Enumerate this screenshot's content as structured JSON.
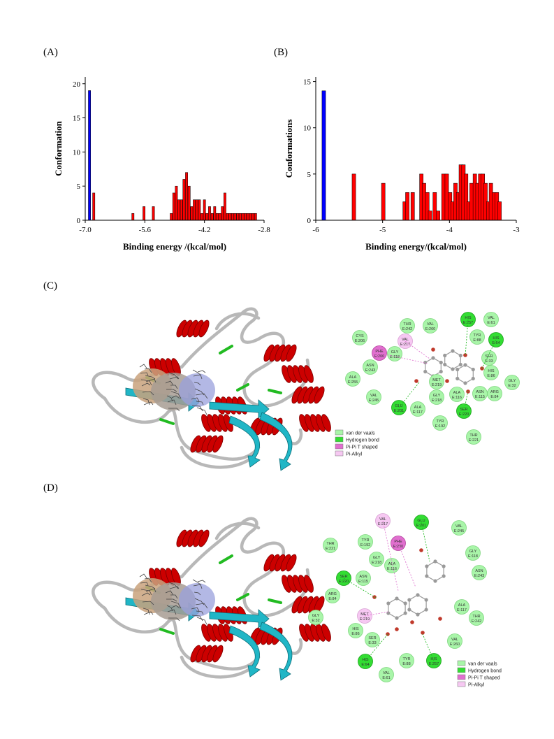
{
  "panels": {
    "a": "(A)",
    "b": "(B)",
    "c": "(C)",
    "d": "(D)"
  },
  "chart_data": [
    {
      "type": "bar",
      "panel": "(A)",
      "xlabel": "Binding energy /(kcal/mol)",
      "ylabel": "Conformation",
      "xlim": [
        -7.0,
        -2.8
      ],
      "ylim": [
        0,
        21
      ],
      "xticks": [
        -7.0,
        -5.6,
        -4.2,
        -2.8
      ],
      "yticks": [
        0,
        5,
        10,
        15,
        20
      ],
      "series": [
        {
          "color": "#0000ff",
          "x": [
            -6.9
          ],
          "values": [
            19
          ]
        },
        {
          "color": "#ff0000",
          "x": [
            -6.8,
            -5.88,
            -5.62,
            -5.4,
            -4.98,
            -4.92,
            -4.86,
            -4.8,
            -4.74,
            -4.68,
            -4.62,
            -4.56,
            -4.5,
            -4.44,
            -4.38,
            -4.32,
            -4.26,
            -4.2,
            -4.14,
            -4.08,
            -4.02,
            -3.96,
            -3.9,
            -3.84,
            -3.78,
            -3.72,
            -3.66,
            -3.6,
            -3.54,
            -3.48,
            -3.42,
            -3.36,
            -3.3,
            -3.24,
            -3.18,
            -3.12,
            -3.06,
            -3.0
          ],
          "values": [
            4,
            1,
            2,
            2,
            1,
            4,
            5,
            3,
            3,
            6,
            7,
            5,
            2,
            3,
            3,
            3,
            1,
            3,
            1,
            2,
            1,
            2,
            1,
            1,
            2,
            4,
            1,
            1,
            1,
            1,
            1,
            1,
            1,
            1,
            1,
            1,
            1,
            1
          ]
        }
      ]
    },
    {
      "type": "bar",
      "panel": "(B)",
      "xlabel": "Binding energy/(kcal/mol)",
      "ylabel": "Conformations",
      "xlim": [
        -6.0,
        -3.0
      ],
      "ylim": [
        0,
        15.5
      ],
      "xticks": [
        -6,
        -5,
        -4,
        -3
      ],
      "yticks": [
        0,
        5,
        10,
        15
      ],
      "series": [
        {
          "color": "#0000ff",
          "x": [
            -5.88
          ],
          "values": [
            14
          ]
        },
        {
          "color": "#ff0000",
          "x": [
            -5.43,
            -4.99,
            -4.67,
            -4.63,
            -4.55,
            -4.42,
            -4.38,
            -4.33,
            -4.29,
            -4.22,
            -4.17,
            -4.09,
            -4.04,
            -3.99,
            -3.95,
            -3.91,
            -3.87,
            -3.83,
            -3.79,
            -3.75,
            -3.71,
            -3.67,
            -3.62,
            -3.58,
            -3.54,
            -3.5,
            -3.46,
            -3.42,
            -3.38,
            -3.33,
            -3.29,
            -3.25
          ],
          "values": [
            5,
            4,
            2,
            3,
            3,
            5,
            4,
            3,
            1,
            3,
            1,
            5,
            5,
            3,
            2,
            4,
            3,
            6,
            6,
            5,
            2,
            4,
            5,
            4,
            5,
            5,
            4,
            2,
            4,
            3,
            3,
            2
          ]
        }
      ]
    }
  ],
  "interaction_c": {
    "residues": [
      {
        "l1": "CYS",
        "l2": "E:206",
        "kind": "vdw"
      },
      {
        "l1": "THR",
        "l2": "E:242",
        "kind": "vdw"
      },
      {
        "l1": "VAL",
        "l2": "E:260",
        "kind": "vdw"
      },
      {
        "l1": "HIS",
        "l2": "E:257",
        "kind": "hbond"
      },
      {
        "l1": "VAL",
        "l2": "E:61",
        "kind": "vdw"
      },
      {
        "l1": "TYR",
        "l2": "E:88",
        "kind": "vdw"
      },
      {
        "l1": "HIS",
        "l2": "E:64",
        "kind": "hbond"
      },
      {
        "l1": "PHE",
        "l2": "E:200",
        "kind": "pipi"
      },
      {
        "l1": "VAL",
        "l2": "E:217",
        "kind": "alkyl"
      },
      {
        "l1": "GLY",
        "l2": "E:118",
        "kind": "vdw"
      },
      {
        "l1": "SER",
        "l2": "E:33",
        "kind": "vdw"
      },
      {
        "l1": "ASN",
        "l2": "E:243",
        "kind": "vdw"
      },
      {
        "l1": "HIS",
        "l2": "E:86",
        "kind": "vdw"
      },
      {
        "l1": "ALA",
        "l2": "E:255",
        "kind": "vdw"
      },
      {
        "l1": "GLY",
        "l2": "E:32",
        "kind": "vdw"
      },
      {
        "l1": "MET",
        "l2": "E:219",
        "kind": "vdw"
      },
      {
        "l1": "VAL",
        "l2": "E:245",
        "kind": "vdw"
      },
      {
        "l1": "ALA",
        "l2": "E:116",
        "kind": "vdw"
      },
      {
        "l1": "GLY",
        "l2": "E:218",
        "kind": "vdw"
      },
      {
        "l1": "ASN",
        "l2": "E:115",
        "kind": "vdw"
      },
      {
        "l1": "ARG",
        "l2": "E:84",
        "kind": "vdw"
      },
      {
        "l1": "GLU",
        "l2": "E:201",
        "kind": "hbond"
      },
      {
        "l1": "ALA",
        "l2": "E:117",
        "kind": "vdw"
      },
      {
        "l1": "SER",
        "l2": "E:220",
        "kind": "hbond"
      },
      {
        "l1": "TYR",
        "l2": "E:192",
        "kind": "vdw"
      },
      {
        "l1": "THR",
        "l2": "E:221",
        "kind": "vdw"
      }
    ],
    "legend": [
      "van der vaals",
      "Hydrogen bond",
      "Pi-Pi T shaped",
      "Pi-Alkyl"
    ]
  },
  "interaction_d": {
    "residues": [
      {
        "l1": "VAL",
        "l2": "E:217",
        "kind": "alkyl"
      },
      {
        "l1": "GLU",
        "l2": "E:201",
        "kind": "hbond"
      },
      {
        "l1": "VAL",
        "l2": "E:245",
        "kind": "vdw"
      },
      {
        "l1": "THR",
        "l2": "E:221",
        "kind": "vdw"
      },
      {
        "l1": "TYR",
        "l2": "E:192",
        "kind": "vdw"
      },
      {
        "l1": "PHE",
        "l2": "E:200",
        "kind": "pipi"
      },
      {
        "l1": "GLY",
        "l2": "E:118",
        "kind": "vdw"
      },
      {
        "l1": "GLY",
        "l2": "E:218",
        "kind": "vdw"
      },
      {
        "l1": "SER",
        "l2": "E:220",
        "kind": "hbond"
      },
      {
        "l1": "ASN",
        "l2": "E:115",
        "kind": "vdw"
      },
      {
        "l1": "ALA",
        "l2": "E:116",
        "kind": "vdw"
      },
      {
        "l1": "ASN",
        "l2": "E:243",
        "kind": "vdw"
      },
      {
        "l1": "ARG",
        "l2": "E:84",
        "kind": "vdw"
      },
      {
        "l1": "GLY",
        "l2": "E:32",
        "kind": "vdw"
      },
      {
        "l1": "MET",
        "l2": "E:219",
        "kind": "alkyl"
      },
      {
        "l1": "ALA",
        "l2": "E:117",
        "kind": "vdw"
      },
      {
        "l1": "THR",
        "l2": "E:242",
        "kind": "vdw"
      },
      {
        "l1": "HIS",
        "l2": "E:86",
        "kind": "vdw"
      },
      {
        "l1": "SER",
        "l2": "E:33",
        "kind": "vdw"
      },
      {
        "l1": "VAL",
        "l2": "E:260",
        "kind": "vdw"
      },
      {
        "l1": "HIS",
        "l2": "E:64",
        "kind": "hbond"
      },
      {
        "l1": "TYR",
        "l2": "E:88",
        "kind": "vdw"
      },
      {
        "l1": "HIS",
        "l2": "E:257",
        "kind": "hbond"
      },
      {
        "l1": "VAL",
        "l2": "E:61",
        "kind": "vdw"
      }
    ],
    "legend": [
      "van der vaals",
      "Hydrogen bond",
      "Pi-Pi T shaped",
      "Pi-Alkyl"
    ]
  },
  "colors": {
    "vdw": "#a9f5a9",
    "hbond": "#33dd33",
    "pipi": "#e16fcf",
    "alkyl": "#f6c8f2",
    "helix": "#cc0000",
    "sheet": "#20b6c6",
    "turn": "#22bb22",
    "coil": "#b8b8b8"
  }
}
